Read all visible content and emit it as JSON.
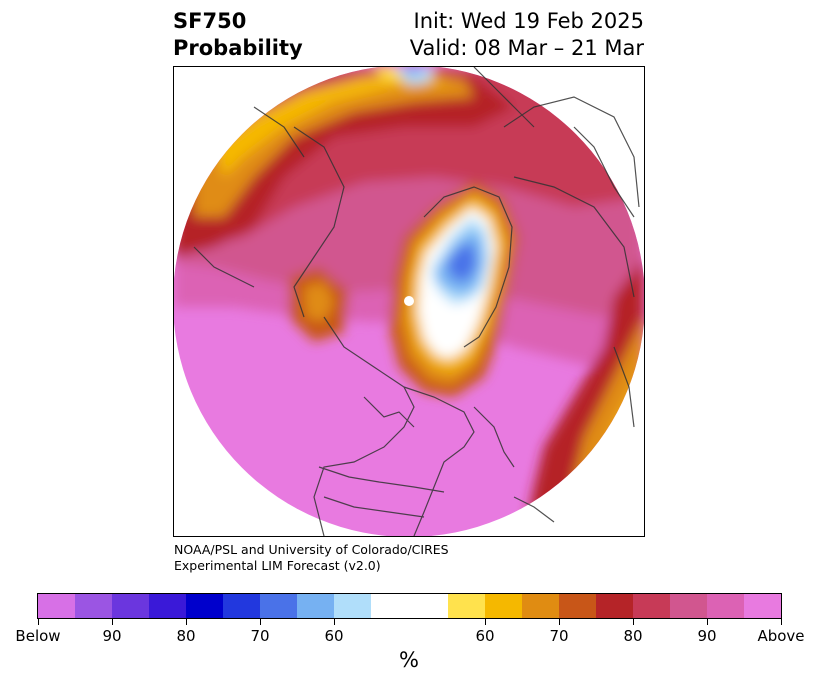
{
  "title": {
    "line1": "SF750",
    "line2": "Probability",
    "init": "Init: Wed 19 Feb 2025",
    "valid": "Valid: 08 Mar – 21 Mar"
  },
  "credit": {
    "line1": "NOAA/PSL and University of Colorado/CIRES",
    "line2": "Experimental LIM Forecast (v2.0)"
  },
  "colorbar": {
    "unit": "%",
    "below_colors": [
      "#d770e6",
      "#9b55e3",
      "#6b36de",
      "#3a19d8",
      "#0000cc",
      "#2238de",
      "#4a72e8",
      "#76b1f2",
      "#b0defa"
    ],
    "neutral_color": "#ffffff",
    "above_colors": [
      "#ffe24d",
      "#f5b800",
      "#e08c12",
      "#c85618",
      "#b52428",
      "#c73a57",
      "#d1568f",
      "#dc62b4",
      "#e87ae0"
    ],
    "tick_labels": [
      "Below",
      "90",
      "80",
      "70",
      "60",
      "60",
      "70",
      "80",
      "90",
      "Above"
    ]
  }
}
